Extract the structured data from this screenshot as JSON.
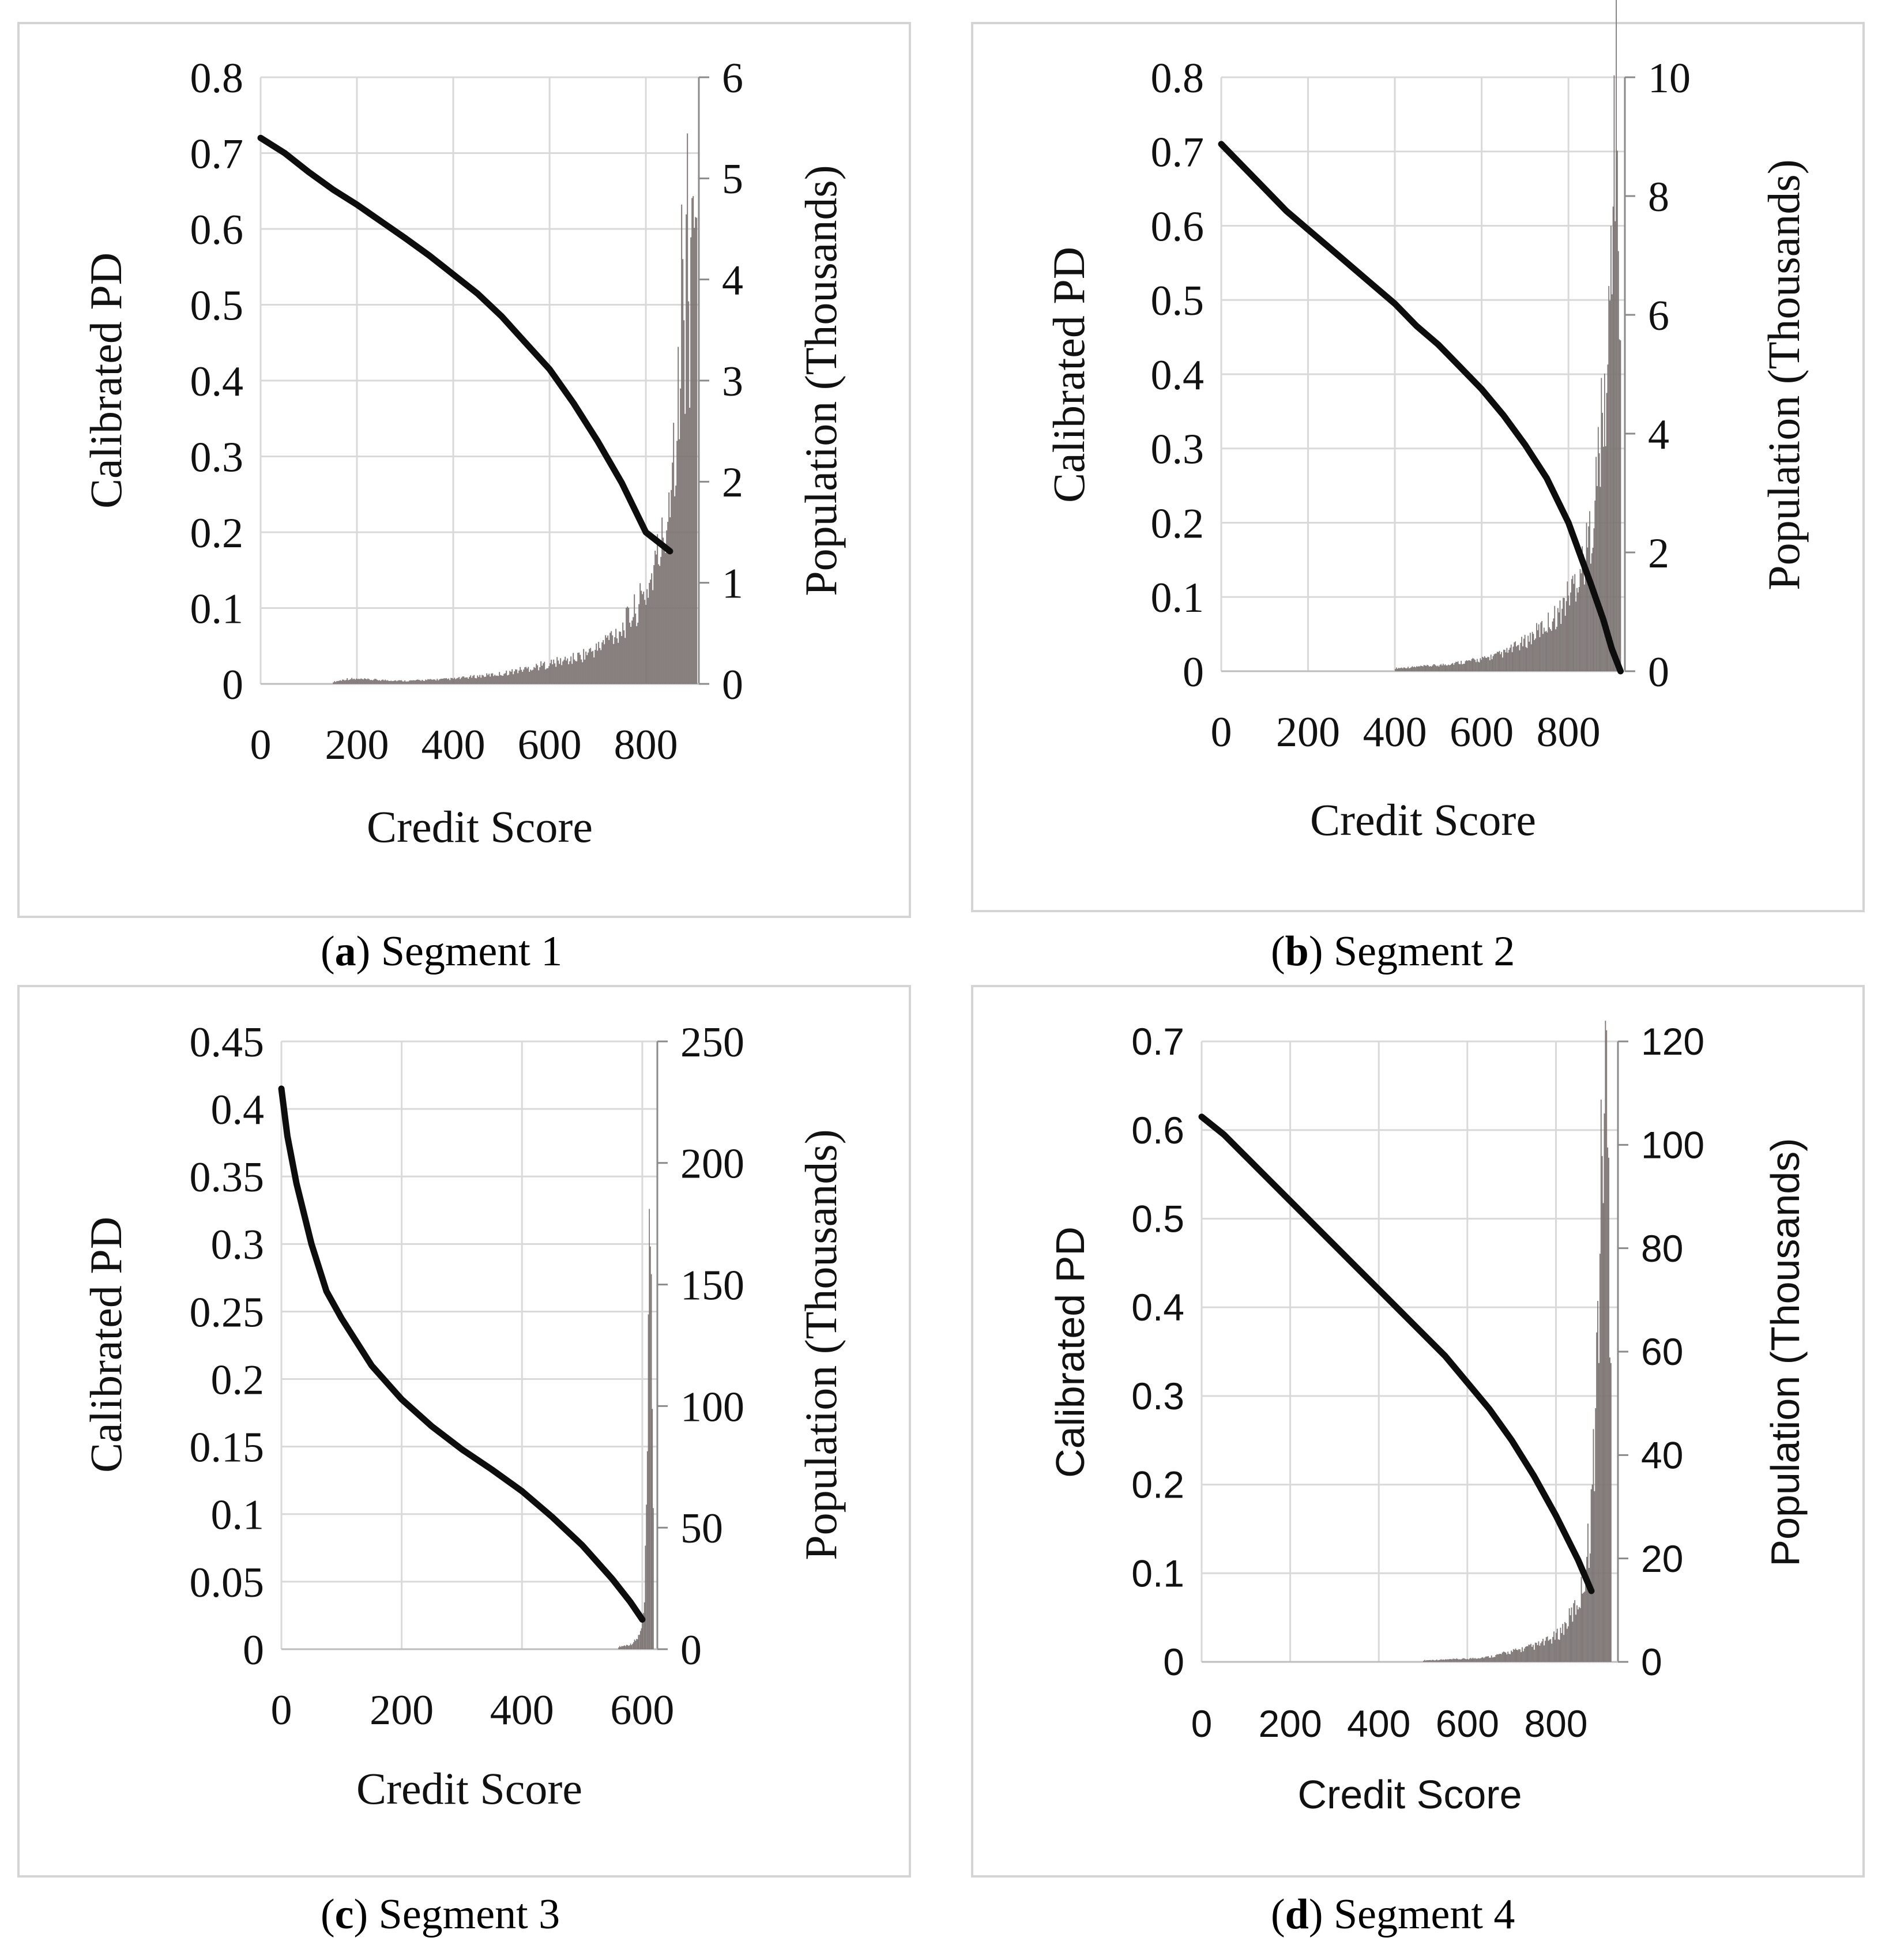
{
  "chart_data": [
    {
      "type": "line+bar",
      "panel_letter": "a",
      "caption": "Segment 1",
      "font": "serif",
      "xlabel": "Credit Score",
      "ylabel_left": "Calibrated PD",
      "ylabel_right": "Population (Thousands)",
      "x_ticks": [
        "0",
        "200",
        "400",
        "600",
        "800"
      ],
      "x_tick_values": [
        0,
        200,
        400,
        600,
        800
      ],
      "xlim": [
        0,
        910
      ],
      "y_left_ticks": [
        "0",
        "0.1",
        "0.2",
        "0.3",
        "0.4",
        "0.5",
        "0.6",
        "0.7",
        "0.8"
      ],
      "y_left_lim": [
        0,
        0.8
      ],
      "y_right_ticks": [
        "0",
        "1",
        "2",
        "3",
        "4",
        "5",
        "6"
      ],
      "y_right_lim": [
        0,
        6
      ],
      "pd_curve": {
        "x": [
          0,
          50,
          100,
          150,
          200,
          250,
          300,
          350,
          400,
          450,
          500,
          550,
          600,
          650,
          700,
          750,
          800,
          850
        ],
        "y": [
          0.72,
          0.7,
          0.675,
          0.652,
          0.632,
          0.61,
          0.588,
          0.565,
          0.54,
          0.515,
          0.485,
          0.45,
          0.415,
          0.37,
          0.32,
          0.265,
          0.2,
          0.175
        ]
      },
      "population": {
        "x": [
          150,
          180,
          300,
          400,
          500,
          550,
          600,
          650,
          700,
          720,
          750,
          780,
          800,
          820,
          840,
          850,
          860,
          870,
          875,
          880,
          885,
          890,
          895,
          900,
          905
        ],
        "y": [
          0.02,
          0.05,
          0.03,
          0.05,
          0.1,
          0.15,
          0.2,
          0.25,
          0.35,
          0.45,
          0.55,
          0.75,
          0.9,
          1.2,
          1.5,
          2.1,
          2.5,
          3.0,
          4.5,
          2.8,
          5.1,
          3.5,
          5.2,
          4.8,
          3.6
        ]
      }
    },
    {
      "type": "line+bar",
      "panel_letter": "b",
      "caption": "Segment 2",
      "font": "serif",
      "xlabel": "Credit Score",
      "ylabel_left": "Calibrated PD",
      "ylabel_right": "Population (Thousands)",
      "x_ticks": [
        "0",
        "200",
        "400",
        "600",
        "800"
      ],
      "x_tick_values": [
        0,
        200,
        400,
        600,
        800
      ],
      "xlim": [
        0,
        930
      ],
      "y_left_ticks": [
        "0",
        "0.1",
        "0.2",
        "0.3",
        "0.4",
        "0.5",
        "0.6",
        "0.7",
        "0.8"
      ],
      "y_left_lim": [
        0,
        0.8
      ],
      "y_right_ticks": [
        "0",
        "2",
        "4",
        "6",
        "8",
        "10"
      ],
      "y_right_lim": [
        0,
        10
      ],
      "pd_curve": {
        "x": [
          0,
          50,
          100,
          150,
          200,
          250,
          300,
          350,
          400,
          450,
          500,
          550,
          600,
          650,
          700,
          750,
          800,
          850,
          880,
          900,
          920
        ],
        "y": [
          0.71,
          0.68,
          0.65,
          0.62,
          0.595,
          0.57,
          0.545,
          0.52,
          0.495,
          0.465,
          0.44,
          0.41,
          0.38,
          0.345,
          0.305,
          0.26,
          0.2,
          0.12,
          0.07,
          0.03,
          0.0
        ]
      },
      "population": {
        "x": [
          400,
          500,
          600,
          650,
          700,
          750,
          780,
          800,
          820,
          840,
          860,
          870,
          880,
          890,
          895,
          900,
          905,
          910,
          915,
          920
        ],
        "y": [
          0.05,
          0.1,
          0.2,
          0.3,
          0.5,
          0.8,
          1.0,
          1.3,
          1.6,
          2.0,
          2.8,
          3.8,
          4.2,
          5.0,
          6.5,
          8.0,
          9.2,
          9.8,
          7.5,
          4.0
        ]
      }
    },
    {
      "type": "line+bar",
      "panel_letter": "c",
      "caption": "Segment 3",
      "font": "serif",
      "xlabel": "Credit Score",
      "ylabel_left": "Calibrated PD",
      "ylabel_right": "Population (Thousands)",
      "x_ticks": [
        "0",
        "200",
        "400",
        "600"
      ],
      "x_tick_values": [
        0,
        200,
        400,
        600
      ],
      "xlim": [
        0,
        625
      ],
      "y_left_ticks": [
        "0",
        "0.05",
        "0.1",
        "0.15",
        "0.2",
        "0.25",
        "0.3",
        "0.35",
        "0.4",
        "0.45"
      ],
      "y_left_lim": [
        0,
        0.45
      ],
      "y_right_ticks": [
        "0",
        "50",
        "100",
        "150",
        "200",
        "250"
      ],
      "y_right_lim": [
        0,
        250
      ],
      "pd_curve": {
        "x": [
          0,
          10,
          25,
          50,
          75,
          100,
          150,
          200,
          250,
          300,
          350,
          400,
          450,
          500,
          550,
          580,
          600
        ],
        "y": [
          0.415,
          0.38,
          0.345,
          0.3,
          0.265,
          0.245,
          0.21,
          0.185,
          0.165,
          0.148,
          0.133,
          0.117,
          0.098,
          0.077,
          0.052,
          0.035,
          0.022
        ]
      },
      "population": {
        "x": [
          560,
          580,
          590,
          595,
          600,
          603,
          606,
          609,
          612,
          615,
          618
        ],
        "y": [
          1,
          2,
          4,
          6,
          10,
          20,
          50,
          100,
          195,
          150,
          40
        ]
      }
    },
    {
      "type": "line+bar",
      "panel_letter": "d",
      "caption": "Segment 4",
      "font": "sans",
      "xlabel": "Credit Score",
      "ylabel_left": "Calibrated PD",
      "ylabel_right": "Population (Thousands)",
      "x_ticks": [
        "0",
        "200",
        "400",
        "600",
        "800"
      ],
      "x_tick_values": [
        0,
        200,
        400,
        600,
        800
      ],
      "xlim": [
        0,
        940
      ],
      "y_left_ticks": [
        "0",
        "0.1",
        "0.2",
        "0.3",
        "0.4",
        "0.5",
        "0.6",
        "0.7"
      ],
      "y_left_lim": [
        0,
        0.7
      ],
      "y_right_ticks": [
        "0",
        "20",
        "40",
        "60",
        "80",
        "100",
        "120"
      ],
      "y_right_lim": [
        0,
        120
      ],
      "pd_curve": {
        "x": [
          0,
          50,
          100,
          150,
          200,
          250,
          300,
          350,
          400,
          450,
          500,
          550,
          600,
          650,
          700,
          750,
          800,
          850,
          880
        ],
        "y": [
          0.615,
          0.595,
          0.57,
          0.545,
          0.52,
          0.495,
          0.47,
          0.445,
          0.42,
          0.395,
          0.37,
          0.345,
          0.315,
          0.285,
          0.25,
          0.21,
          0.165,
          0.115,
          0.08
        ]
      },
      "population": {
        "x": [
          500,
          600,
          650,
          700,
          750,
          780,
          800,
          820,
          840,
          855,
          865,
          875,
          885,
          892,
          898,
          905,
          912,
          918,
          925
        ],
        "y": [
          0.3,
          0.6,
          1,
          2,
          3,
          4,
          5,
          7,
          10,
          13,
          18,
          25,
          40,
          60,
          80,
          105,
          113,
          90,
          55
        ]
      }
    }
  ],
  "captions": [
    {
      "letter": "a",
      "text": "Segment 1"
    },
    {
      "letter": "b",
      "text": "Segment 2"
    },
    {
      "letter": "c",
      "text": "Segment 3"
    },
    {
      "letter": "d",
      "text": "Segment 4"
    }
  ],
  "colors": {
    "pd_line": "#0d0d0d",
    "population_bars": "#7b7473",
    "grid": "#d9d9d9",
    "frame": "#d4d4d4"
  }
}
